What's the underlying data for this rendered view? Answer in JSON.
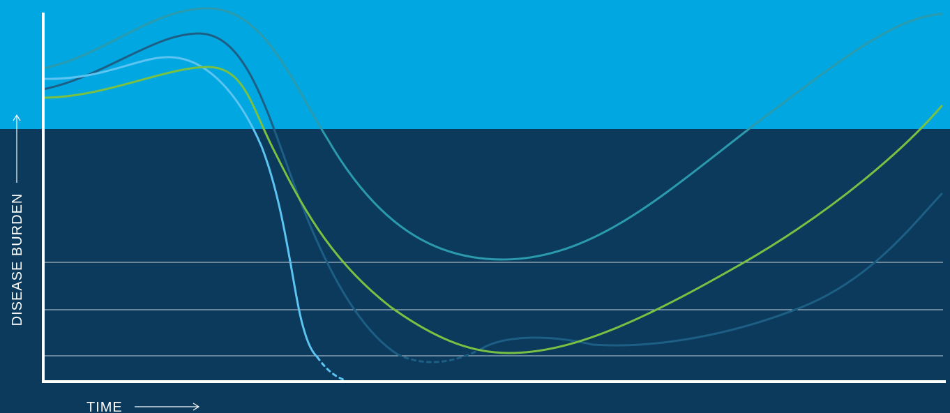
{
  "axes": {
    "y_label": "DISEASE BURDEN",
    "x_label": "TIME"
  }
}
